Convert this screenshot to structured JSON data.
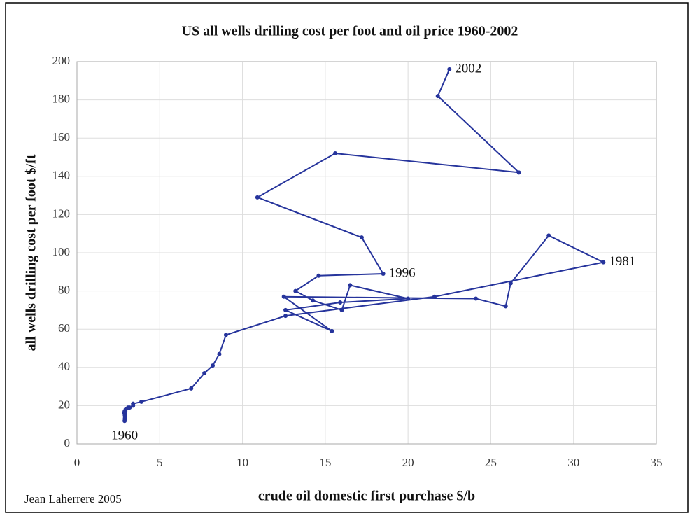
{
  "chart_data": {
    "type": "scatter",
    "title": "US all wells drilling cost per foot and oil price 1960-2002",
    "x_label": "crude oil domestic first purchase $/b",
    "y_label": "all wells drilling cost per foot $/ft",
    "footer": "Jean Laherrere 2005",
    "color": "#26349c",
    "connected": true,
    "grid": true,
    "xlim": [
      0,
      35
    ],
    "xticks": [
      0,
      5,
      10,
      15,
      20,
      25,
      30,
      35
    ],
    "ylim": [
      0,
      200
    ],
    "yticks": [
      0,
      20,
      40,
      60,
      80,
      100,
      120,
      140,
      160,
      180,
      200
    ],
    "x": [
      2.88,
      2.89,
      2.9,
      2.89,
      2.88,
      2.86,
      2.88,
      2.92,
      2.94,
      3.09,
      3.18,
      3.39,
      3.39,
      3.89,
      6.9,
      7.7,
      8.2,
      8.6,
      9.0,
      12.6,
      21.6,
      31.8,
      28.5,
      26.2,
      25.9,
      24.1,
      12.5,
      15.4,
      12.6,
      15.9,
      20.0,
      16.5,
      16.0,
      14.25,
      13.2,
      14.6,
      18.5,
      17.2,
      10.9,
      15.6,
      26.7,
      21.8,
      22.5
    ],
    "values": [
      12,
      13,
      14,
      15,
      16,
      16,
      17,
      17,
      18,
      19,
      19,
      20,
      21,
      22,
      29,
      37,
      41,
      47,
      57,
      67,
      77,
      95,
      109,
      84,
      72,
      76,
      77,
      59,
      70,
      74,
      76,
      83,
      70,
      75,
      80,
      88,
      89,
      108,
      129,
      152,
      142,
      182,
      196
    ],
    "annotations": [
      {
        "text": "1960",
        "point": 0
      },
      {
        "text": "1981",
        "point": 21
      },
      {
        "text": "1996",
        "point": 36
      },
      {
        "text": "2002",
        "point": 42
      }
    ]
  }
}
